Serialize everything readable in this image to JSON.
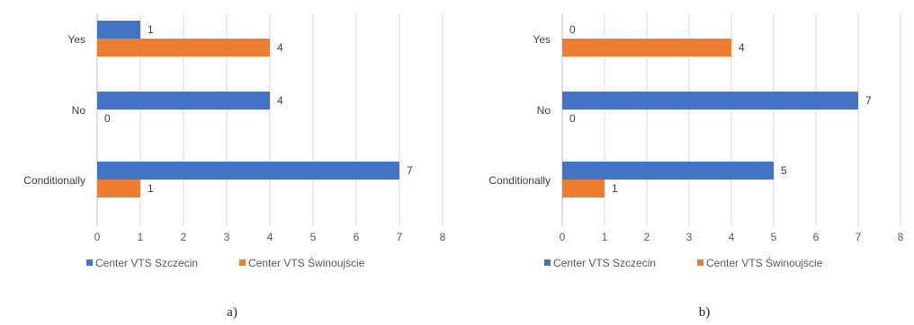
{
  "legend_colors": {
    "Center VTS Szczecin": "#4472c4",
    "Center VTS Świnoujście": "#ed7d31"
  },
  "chart_data": [
    {
      "type": "bar",
      "orientation": "horizontal",
      "panel_label": "a)",
      "categories": [
        "Yes",
        "No",
        "Conditionally"
      ],
      "series": [
        {
          "name": "Center VTS Szczecin",
          "color": "#4472c4",
          "values": [
            1,
            4,
            7
          ]
        },
        {
          "name": "Center VTS Świnoujście",
          "color": "#ed7d31",
          "values": [
            4,
            0,
            1
          ]
        }
      ],
      "xlim": [
        0,
        8
      ],
      "xticks": [
        "0",
        "1",
        "2",
        "3",
        "4",
        "5",
        "6",
        "7",
        "8"
      ],
      "grid": true,
      "legend_position": "bottom"
    },
    {
      "type": "bar",
      "orientation": "horizontal",
      "panel_label": "b)",
      "categories": [
        "Yes",
        "No",
        "Conditionally"
      ],
      "series": [
        {
          "name": "Center VTS Szczecin",
          "color": "#4472c4",
          "values": [
            0,
            7,
            5
          ]
        },
        {
          "name": "Center VTS Świnoujście",
          "color": "#ed7d31",
          "values": [
            4,
            0,
            1
          ]
        }
      ],
      "xlim": [
        0,
        8
      ],
      "xticks": [
        "0",
        "1",
        "2",
        "3",
        "4",
        "5",
        "6",
        "7",
        "8"
      ],
      "grid": true,
      "legend_position": "bottom"
    }
  ]
}
